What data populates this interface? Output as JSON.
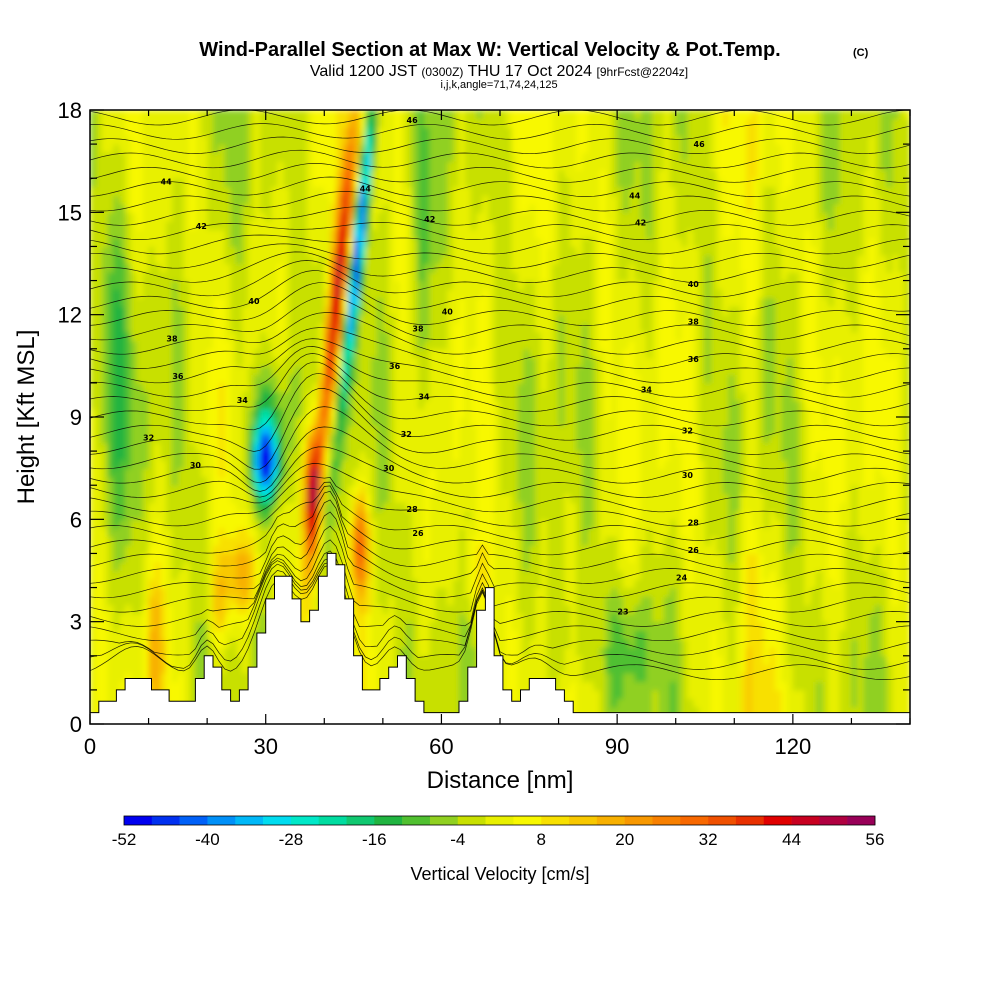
{
  "header": {
    "title_main": "Wind-Parallel Section at Max W: Vertical Velocity & Pot.Temp.",
    "title_mark": "(C)",
    "valid_pre": "Valid 1200 JST",
    "valid_utc": "(0300Z)",
    "valid_date": "THU 17 Oct 2024",
    "valid_fcst": "[9hrFcst@2204z]",
    "ijk": "i,j,k,angle=71,74,24,125"
  },
  "chart_data": {
    "type": "heatmap",
    "xlabel": "Distance [nm]",
    "ylabel": "Height [Kft MSL]",
    "xlim": [
      0,
      140
    ],
    "ylim": [
      0,
      18
    ],
    "xticks": [
      0,
      30,
      60,
      90,
      120
    ],
    "yticks": [
      0,
      3,
      6,
      9,
      12,
      15,
      18
    ],
    "colorbar": {
      "label": "Vertical Velocity [cm/s]",
      "ticks": [
        -52,
        -40,
        -28,
        -16,
        -4,
        8,
        20,
        32,
        44,
        56
      ],
      "min": -52,
      "max": 56,
      "step": 4,
      "colors": [
        "#0000f0",
        "#0030f0",
        "#0060f8",
        "#0090f8",
        "#00b8f8",
        "#00dcf0",
        "#00e8c8",
        "#00dca0",
        "#10c870",
        "#20b440",
        "#50c030",
        "#90d020",
        "#c8e000",
        "#e8f000",
        "#f8f800",
        "#f8e000",
        "#f8c800",
        "#f8b000",
        "#f89800",
        "#f88000",
        "#f86800",
        "#f05000",
        "#e83000",
        "#e00000",
        "#c80020",
        "#b00040",
        "#980058"
      ]
    },
    "contour_labels": [
      {
        "text": "46",
        "x": 55,
        "y": 17.7
      },
      {
        "text": "46",
        "x": 104,
        "y": 17.0
      },
      {
        "text": "44",
        "x": 13,
        "y": 15.9
      },
      {
        "text": "44",
        "x": 47,
        "y": 15.7
      },
      {
        "text": "44",
        "x": 93,
        "y": 15.5
      },
      {
        "text": "42",
        "x": 19,
        "y": 14.6
      },
      {
        "text": "42",
        "x": 58,
        "y": 14.8
      },
      {
        "text": "42",
        "x": 94,
        "y": 14.7
      },
      {
        "text": "40",
        "x": 28,
        "y": 12.4
      },
      {
        "text": "40",
        "x": 61,
        "y": 12.1
      },
      {
        "text": "40",
        "x": 103,
        "y": 12.9
      },
      {
        "text": "38",
        "x": 14,
        "y": 11.3
      },
      {
        "text": "38",
        "x": 56,
        "y": 11.6
      },
      {
        "text": "38",
        "x": 103,
        "y": 11.8
      },
      {
        "text": "36",
        "x": 15,
        "y": 10.2
      },
      {
        "text": "36",
        "x": 52,
        "y": 10.5
      },
      {
        "text": "36",
        "x": 103,
        "y": 10.7
      },
      {
        "text": "34",
        "x": 26,
        "y": 9.5
      },
      {
        "text": "34",
        "x": 57,
        "y": 9.6
      },
      {
        "text": "34",
        "x": 95,
        "y": 9.8
      },
      {
        "text": "32",
        "x": 10,
        "y": 8.4
      },
      {
        "text": "32",
        "x": 54,
        "y": 8.5
      },
      {
        "text": "32",
        "x": 102,
        "y": 8.6
      },
      {
        "text": "30",
        "x": 18,
        "y": 7.6
      },
      {
        "text": "30",
        "x": 51,
        "y": 7.5
      },
      {
        "text": "30",
        "x": 102,
        "y": 7.3
      },
      {
        "text": "28",
        "x": 55,
        "y": 6.3
      },
      {
        "text": "28",
        "x": 103,
        "y": 5.9
      },
      {
        "text": "26",
        "x": 56,
        "y": 5.6
      },
      {
        "text": "26",
        "x": 103,
        "y": 5.1
      },
      {
        "text": "24",
        "x": 101,
        "y": 4.3
      },
      {
        "text": "23",
        "x": 91,
        "y": 3.3
      }
    ]
  }
}
